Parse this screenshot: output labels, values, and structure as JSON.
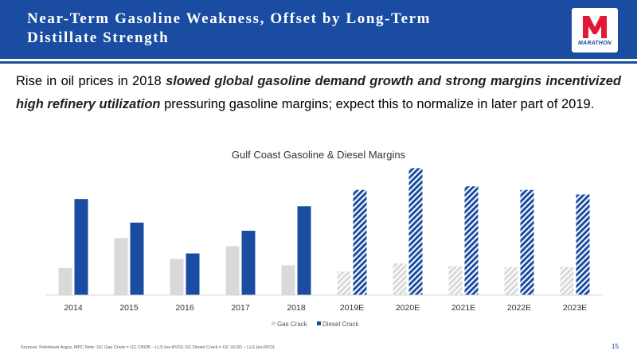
{
  "header": {
    "title_line1": "Near-Term Gasoline Weakness, Offset by Long-Term",
    "title_line2": "Distillate Strength",
    "logo_text": "MARATHON"
  },
  "body": {
    "part1": "Rise in oil prices in 2018 ",
    "highlight1": "slowed global gasoline demand growth and strong margins incentivized high refinery utilization",
    "part2": " pressuring gasoline margins; expect this to normalize in later part of 2019."
  },
  "chart_data": {
    "type": "bar",
    "title": "Gulf Coast Gasoline & Diesel Margins",
    "categories": [
      "2014",
      "2015",
      "2016",
      "2017",
      "2018",
      "2019E",
      "2020E",
      "2021E",
      "2022E",
      "2023E"
    ],
    "series": [
      {
        "name": "Gas Crack",
        "values": [
          30,
          63,
          40,
          54,
          33,
          26,
          35,
          32,
          31,
          31
        ],
        "color": "#d9d9d9",
        "forecast_from_index": 5
      },
      {
        "name": "Diesel Crack",
        "values": [
          106,
          80,
          46,
          71,
          98,
          116,
          140,
          120,
          116,
          111
        ],
        "color": "#1a4da1",
        "forecast_from_index": 5
      }
    ],
    "xlabel": "",
    "ylabel": "",
    "ylim": [
      0,
      150
    ],
    "grid": false,
    "legend": "bottom"
  },
  "footer": {
    "note": "Sources: Petroleum Argus, MPC    Note: GC Gas Crack = GC CBOB – LLS (ex-RVO); GC Diesel Crack = GC ULSD – LLS (ex-RVO)",
    "page": "15"
  }
}
